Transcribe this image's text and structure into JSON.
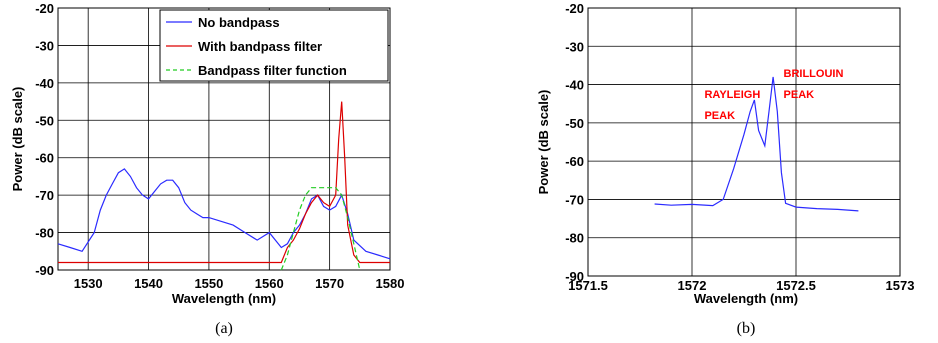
{
  "chart_data": [
    {
      "type": "line",
      "caption": "(a)",
      "xlabel": "Wavelength (nm)",
      "ylabel": "Power (dB scale)",
      "xlim": [
        1525,
        1580
      ],
      "ylim": [
        -90,
        -20
      ],
      "x_ticks": [
        1530,
        1540,
        1550,
        1560,
        1570,
        1580
      ],
      "y_ticks": [
        -20,
        -30,
        -40,
        -50,
        -60,
        -70,
        -80,
        -90
      ],
      "grid": true,
      "legend_position": "top-right",
      "series": [
        {
          "name": "No bandpass",
          "color": "#2b2bff",
          "x": [
            1525,
            1527,
            1529,
            1531,
            1532,
            1533,
            1534,
            1535,
            1536,
            1537,
            1538,
            1539,
            1540,
            1541,
            1542,
            1543,
            1544,
            1545,
            1546,
            1547,
            1548,
            1549,
            1550,
            1552,
            1554,
            1556,
            1558,
            1560,
            1562,
            1563,
            1564,
            1565,
            1566,
            1567,
            1568,
            1569,
            1570,
            1571,
            1572,
            1573,
            1574,
            1576,
            1578,
            1580
          ],
          "y": [
            -83,
            -84,
            -85,
            -80,
            -74,
            -70,
            -67,
            -64,
            -63,
            -65,
            -68,
            -70,
            -71,
            -69,
            -67,
            -66,
            -66,
            -68,
            -72,
            -74,
            -75,
            -76,
            -76,
            -77,
            -78,
            -80,
            -82,
            -80,
            -84,
            -83,
            -80,
            -78,
            -75,
            -71,
            -70,
            -73,
            -74,
            -73,
            -70,
            -75,
            -82,
            -85,
            -86,
            -87
          ]
        },
        {
          "name": "With bandpass filter",
          "color": "#dd0000",
          "x": [
            1525,
            1530,
            1535,
            1540,
            1545,
            1550,
            1555,
            1560,
            1562,
            1563,
            1564,
            1565,
            1566,
            1567,
            1568,
            1569,
            1570,
            1571,
            1571.5,
            1572,
            1572.5,
            1573,
            1574,
            1575,
            1580
          ],
          "y": [
            -88,
            -88,
            -88,
            -88,
            -88,
            -88,
            -88,
            -88,
            -88,
            -84,
            -82,
            -79,
            -75,
            -72,
            -70,
            -72,
            -73,
            -70,
            -55,
            -45,
            -60,
            -78,
            -86,
            -88,
            -88
          ]
        },
        {
          "name": "Bandpass filter function",
          "color": "#22cc22",
          "dashed": true,
          "x": [
            1562,
            1563,
            1564,
            1565,
            1566,
            1567,
            1568,
            1569,
            1570,
            1571,
            1572,
            1573,
            1574,
            1575
          ],
          "y": [
            -90,
            -86,
            -80,
            -74,
            -70,
            -68,
            -68,
            -68,
            -68,
            -68,
            -70,
            -76,
            -83,
            -90
          ]
        }
      ]
    },
    {
      "type": "line",
      "caption": "(b)",
      "xlabel": "Wavelength (nm)",
      "ylabel": "Power (dB scale)",
      "xlim": [
        1571.5,
        1573
      ],
      "ylim": [
        -90,
        -20
      ],
      "x_ticks": [
        1571.5,
        1572,
        1572.5,
        1573
      ],
      "y_ticks": [
        -20,
        -30,
        -40,
        -50,
        -60,
        -70,
        -80,
        -90
      ],
      "grid": true,
      "annotations": [
        {
          "text": "RAYLEIGH",
          "x": 1572.06,
          "y": -43.5
        },
        {
          "text": "PEAK",
          "x": 1572.06,
          "y": -49
        },
        {
          "text": "BRILLOUIN",
          "x": 1572.44,
          "y": -38
        },
        {
          "text": "PEAK",
          "x": 1572.44,
          "y": -43.5
        }
      ],
      "series": [
        {
          "color": "#2b2bff",
          "x": [
            1571.82,
            1571.9,
            1572.0,
            1572.1,
            1572.15,
            1572.2,
            1572.25,
            1572.28,
            1572.3,
            1572.32,
            1572.35,
            1572.37,
            1572.39,
            1572.41,
            1572.43,
            1572.45,
            1572.5,
            1572.6,
            1572.7,
            1572.8
          ],
          "y": [
            -71.2,
            -71.5,
            -71.3,
            -71.6,
            -70,
            -62,
            -53,
            -47,
            -44,
            -52,
            -56,
            -47,
            -38,
            -47,
            -63,
            -71,
            -72,
            -72.4,
            -72.6,
            -73
          ]
        }
      ]
    }
  ]
}
